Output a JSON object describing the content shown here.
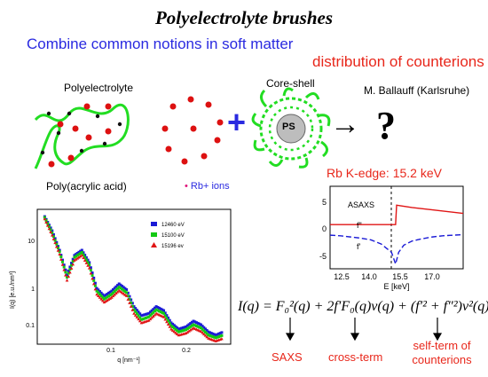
{
  "title": "Polyelectrolyte brushes",
  "subtitle": "Combine common notions in soft matter",
  "distribution_label": "distribution of counterions",
  "schematic": {
    "polyelectrolyte_label": "Polyelectrolyte",
    "coreshell_label": "Core-shell",
    "core_text": "PS",
    "plus": "+",
    "arrow": "→",
    "question": "?",
    "author": "M. Ballauff (Karlsruhe)",
    "paa_label": "Poly(acrylic acid)",
    "ion_bullet": "•",
    "ion_label": "Rb+ ions"
  },
  "colors": {
    "accent_blue": "#2a2ae0",
    "accent_red": "#e8271b",
    "chain_green": "#22dd22",
    "ion_red": "#dd1111"
  },
  "edge_label": "Rb K-edge: 15.2 keV",
  "saxs_plot": {
    "ylabel": "I(q) [e.u./nm³]",
    "xlabel": "q [nm⁻¹]",
    "yticks": [
      "10",
      "1",
      "0.1"
    ],
    "xticks": [
      "0.1",
      "0.2"
    ],
    "legend": [
      {
        "name": "12460 eV",
        "color": "#1b1bd6"
      },
      {
        "name": "15100 eV",
        "color": "#12c912"
      },
      {
        "name": "15196 ev",
        "color": "#e01515"
      }
    ]
  },
  "asaxs_plot": {
    "label": "ASAXS",
    "f2_label": "f\"",
    "f1_label": "f'",
    "xlabel": "E [keV]",
    "yticks": [
      "5",
      "0",
      "-5"
    ],
    "xticks": [
      "12.5",
      "14.0",
      "15.5",
      "17.0"
    ]
  },
  "equation": {
    "lhs": "I(q) =",
    "rhs": "F₀²(q) + 2f′F₀(q)v(q) + (f′² + f″²)v²(q)"
  },
  "terms": {
    "saxs": "SAXS",
    "cross": "cross-term",
    "self_line1": "self-term of",
    "self_line2": "counterions"
  },
  "chart_data": [
    {
      "type": "scatter",
      "title": "",
      "xlabel": "q [nm⁻¹]",
      "ylabel": "I(q) [e.u./nm³]",
      "yscale": "log",
      "xlim": [
        0,
        0.26
      ],
      "ylim": [
        0.03,
        60
      ],
      "legend_position": "top-right",
      "series": [
        {
          "name": "12460 eV",
          "x": [
            0.01,
            0.02,
            0.03,
            0.04,
            0.05,
            0.06,
            0.07,
            0.08,
            0.09,
            0.1,
            0.11,
            0.12,
            0.13,
            0.14,
            0.15,
            0.16,
            0.17,
            0.18,
            0.19,
            0.2,
            0.21,
            0.22,
            0.23,
            0.24,
            0.25
          ],
          "y": [
            40,
            18,
            6,
            1.5,
            4.5,
            6,
            3,
            0.7,
            0.45,
            0.6,
            0.9,
            0.65,
            0.25,
            0.15,
            0.17,
            0.25,
            0.2,
            0.1,
            0.07,
            0.08,
            0.11,
            0.09,
            0.06,
            0.05,
            0.06
          ]
        },
        {
          "name": "15100 eV",
          "x": [
            0.01,
            0.02,
            0.03,
            0.04,
            0.05,
            0.06,
            0.07,
            0.08,
            0.09,
            0.1,
            0.11,
            0.12,
            0.13,
            0.14,
            0.15,
            0.16,
            0.17,
            0.18,
            0.19,
            0.2,
            0.21,
            0.22,
            0.23,
            0.24,
            0.25
          ],
          "y": [
            38,
            16,
            5.5,
            1.3,
            4,
            5.3,
            2.6,
            0.6,
            0.38,
            0.5,
            0.75,
            0.55,
            0.21,
            0.12,
            0.14,
            0.21,
            0.17,
            0.085,
            0.06,
            0.068,
            0.09,
            0.075,
            0.05,
            0.043,
            0.05
          ]
        },
        {
          "name": "15196 ev",
          "x": [
            0.01,
            0.02,
            0.03,
            0.04,
            0.05,
            0.06,
            0.07,
            0.08,
            0.09,
            0.1,
            0.11,
            0.12,
            0.13,
            0.14,
            0.15,
            0.16,
            0.17,
            0.18,
            0.19,
            0.2,
            0.21,
            0.22,
            0.23,
            0.24,
            0.25
          ],
          "y": [
            35,
            14,
            4.8,
            1.1,
            3.4,
            4.5,
            2.2,
            0.5,
            0.32,
            0.42,
            0.62,
            0.46,
            0.17,
            0.1,
            0.115,
            0.17,
            0.14,
            0.07,
            0.05,
            0.056,
            0.075,
            0.062,
            0.042,
            0.036,
            0.042
          ]
        }
      ]
    },
    {
      "type": "line",
      "title": "",
      "xlabel": "E [keV]",
      "ylabel": "",
      "xlim": [
        12,
        18.5
      ],
      "ylim": [
        -7,
        7
      ],
      "series": [
        {
          "name": "f\"",
          "x": [
            12,
            13,
            14,
            15,
            15.2,
            15.25,
            16,
            17,
            18.5
          ],
          "y": [
            0.5,
            0.5,
            0.5,
            0.5,
            0.5,
            3.8,
            3.4,
            3,
            2.4
          ]
        },
        {
          "name": "f'",
          "x": [
            12,
            12.5,
            13,
            13.5,
            14,
            14.5,
            15,
            15.2,
            15.35,
            15.6,
            16,
            16.5,
            17,
            17.5,
            18,
            18.5
          ],
          "y": [
            -1.3,
            -1.4,
            -1.6,
            -1.8,
            -2.1,
            -2.8,
            -4.2,
            -6.2,
            -4.2,
            -3,
            -2.3,
            -1.9,
            -1.6,
            -1.4,
            -1.3,
            -1.2
          ]
        }
      ]
    }
  ]
}
